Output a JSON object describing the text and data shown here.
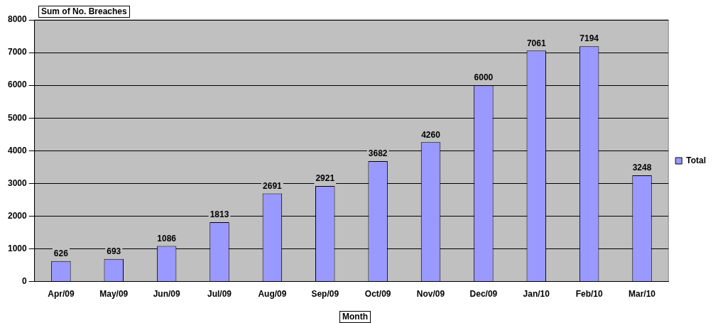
{
  "chart_data": {
    "type": "bar",
    "title": "Sum of No. Breaches",
    "xlabel": "Month",
    "categories": [
      "Apr/09",
      "May/09",
      "Jun/09",
      "Jul/09",
      "Aug/09",
      "Sep/09",
      "Oct/09",
      "Nov/09",
      "Dec/09",
      "Jan/10",
      "Feb/10",
      "Mar/10"
    ],
    "series": [
      {
        "name": "Total",
        "color": "#9999ff",
        "values": [
          626,
          693,
          1086,
          1813,
          2691,
          2921,
          3682,
          4260,
          6000,
          7061,
          7194,
          3248
        ]
      }
    ],
    "ylim": [
      0,
      8000
    ],
    "yticks": [
      0,
      1000,
      2000,
      3000,
      4000,
      5000,
      6000,
      7000,
      8000
    ],
    "grid": "y",
    "legend": "right",
    "data_labels": true
  }
}
